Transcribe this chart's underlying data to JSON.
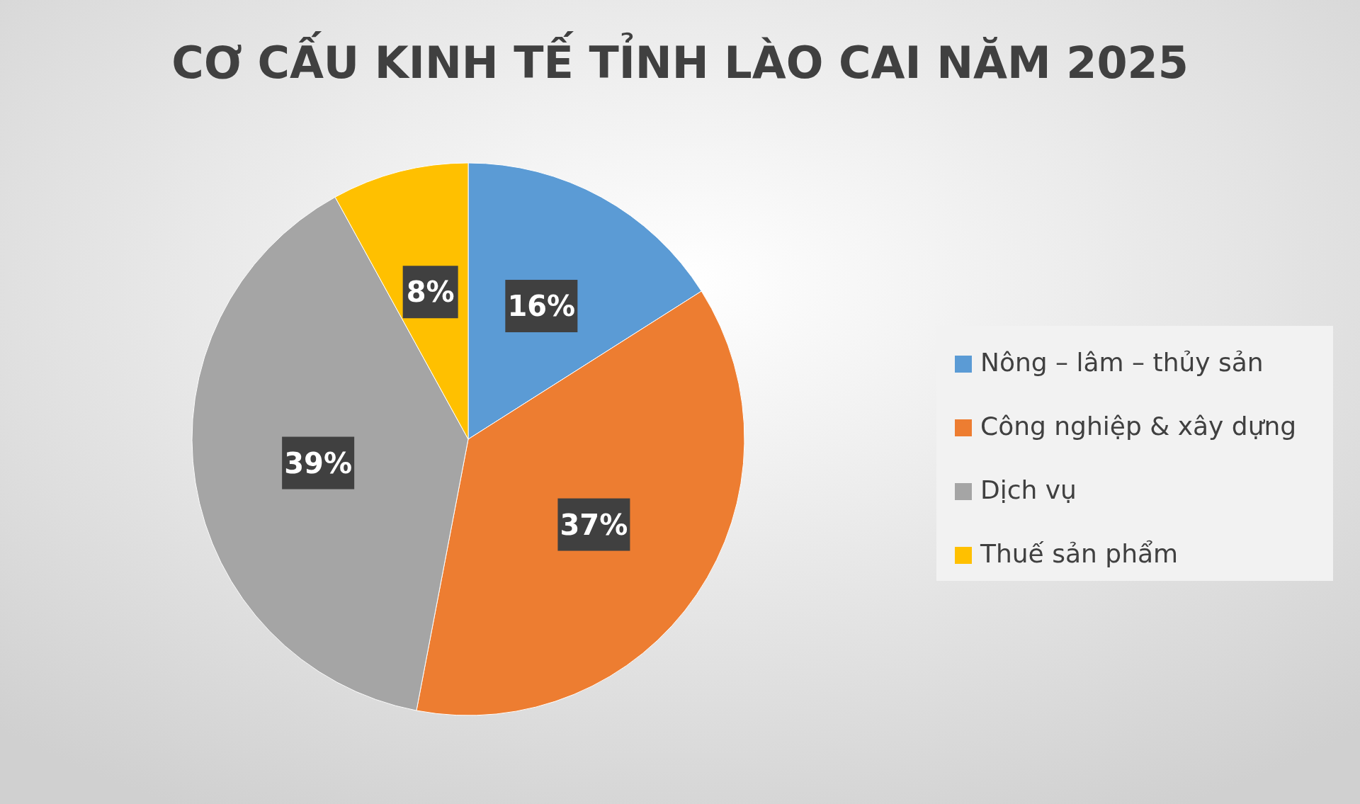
{
  "chart_data": {
    "type": "pie",
    "title": "CƠ CẤU KINH TẾ TỈNH LÀO CAI NĂM 2025",
    "categories": [
      "Nông – lâm – thủy sản",
      "Công nghiệp & xây dựng",
      "Dịch vụ",
      "Thuế sản phẩm"
    ],
    "values": [
      16,
      37,
      39,
      8
    ],
    "colors": [
      "#5b9bd5",
      "#ed7d31",
      "#a5a5a5",
      "#ffc000"
    ],
    "value_labels": [
      "16%",
      "37%",
      "39%",
      "8%"
    ],
    "legend": "right"
  }
}
